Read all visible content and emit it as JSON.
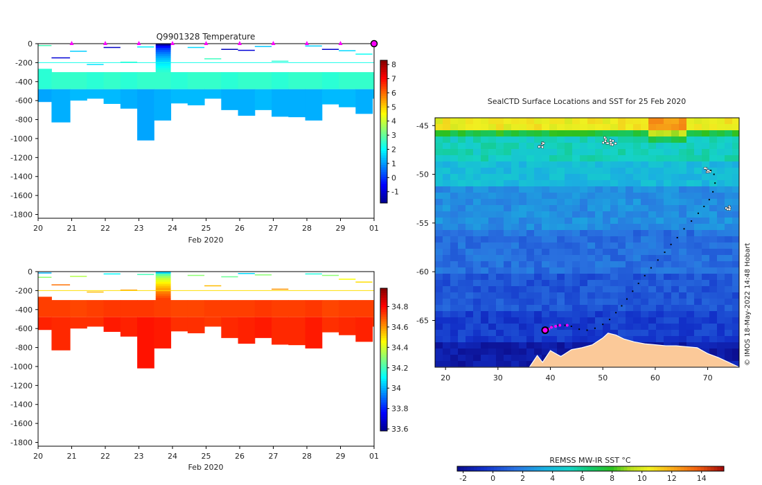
{
  "figure": {
    "credit": "© IMOS 18-May-2022 14:48 Hobart"
  },
  "chart_data": [
    {
      "id": "temperature-section",
      "type": "heatmap",
      "title": "Q9901328  Temperature",
      "xlabel": "Feb 2020",
      "x_ticks": [
        "20",
        "21",
        "22",
        "23",
        "24",
        "25",
        "26",
        "27",
        "28",
        "29",
        "01"
      ],
      "xlim_days": [
        20,
        30
      ],
      "ylim": [
        -1840,
        0
      ],
      "y_ticks": [
        0,
        -200,
        -400,
        -600,
        -800,
        -1000,
        -1200,
        -1400,
        -1600,
        -1800
      ],
      "colorbar": {
        "min": -1.8,
        "max": 8.3,
        "ticks": [
          8,
          7,
          6,
          5,
          4,
          3,
          2,
          1,
          0,
          -1
        ]
      },
      "surface_markers_day": [
        21.0,
        22.0,
        23.0,
        24.0,
        25.0,
        26.0,
        27.0,
        28.0,
        29.0
      ],
      "profiles": [
        {
          "t0": 20.0,
          "t1": 20.4,
          "top": -265,
          "bottom": -615,
          "v_upper": 2.4,
          "v_lower": 1.1
        },
        {
          "t0": 20.4,
          "t1": 20.95,
          "top": -300,
          "bottom": -830,
          "v_upper": 2.5,
          "v_lower": 1.2
        },
        {
          "t0": 20.95,
          "t1": 21.45,
          "top": -300,
          "bottom": -600,
          "v_upper": 2.5,
          "v_lower": 1.3
        },
        {
          "t0": 21.45,
          "t1": 21.95,
          "top": -300,
          "bottom": -580,
          "v_upper": 2.4,
          "v_lower": 1.3
        },
        {
          "t0": 21.95,
          "t1": 22.45,
          "top": -300,
          "bottom": -635,
          "v_upper": 2.5,
          "v_lower": 1.3
        },
        {
          "t0": 22.45,
          "t1": 22.95,
          "top": -300,
          "bottom": -685,
          "v_upper": 2.4,
          "v_lower": 1.2
        },
        {
          "t0": 22.95,
          "t1": 23.45,
          "top": -300,
          "bottom": -1020,
          "v_upper": 2.5,
          "v_lower": 1.1
        },
        {
          "t0": 23.45,
          "t1": 23.95,
          "top": -300,
          "bottom": -810,
          "v_upper": 2.5,
          "v_lower": 1.2
        },
        {
          "t0": 23.95,
          "t1": 24.45,
          "top": -300,
          "bottom": -630,
          "v_upper": 2.4,
          "v_lower": 1.3
        },
        {
          "t0": 24.45,
          "t1": 24.95,
          "top": -300,
          "bottom": -650,
          "v_upper": 2.5,
          "v_lower": 1.3
        },
        {
          "t0": 24.95,
          "t1": 25.45,
          "top": -300,
          "bottom": -580,
          "v_upper": 2.5,
          "v_lower": 1.3
        },
        {
          "t0": 25.45,
          "t1": 25.95,
          "top": -300,
          "bottom": -700,
          "v_upper": 2.4,
          "v_lower": 1.2
        },
        {
          "t0": 25.95,
          "t1": 26.45,
          "top": -300,
          "bottom": -760,
          "v_upper": 2.5,
          "v_lower": 1.2
        },
        {
          "t0": 26.45,
          "t1": 26.95,
          "top": -300,
          "bottom": -700,
          "v_upper": 2.5,
          "v_lower": 1.3
        },
        {
          "t0": 26.95,
          "t1": 27.45,
          "top": -300,
          "bottom": -770,
          "v_upper": 2.4,
          "v_lower": 1.2
        },
        {
          "t0": 27.45,
          "t1": 27.95,
          "top": -300,
          "bottom": -775,
          "v_upper": 2.5,
          "v_lower": 1.2
        },
        {
          "t0": 27.95,
          "t1": 28.45,
          "top": -300,
          "bottom": -810,
          "v_upper": 2.5,
          "v_lower": 1.2
        },
        {
          "t0": 28.45,
          "t1": 28.95,
          "top": -300,
          "bottom": -640,
          "v_upper": 2.4,
          "v_lower": 1.3
        },
        {
          "t0": 28.95,
          "t1": 29.45,
          "top": -300,
          "bottom": -670,
          "v_upper": 2.5,
          "v_lower": 1.3
        },
        {
          "t0": 29.45,
          "t1": 29.95,
          "top": -300,
          "bottom": -740,
          "v_upper": 2.5,
          "v_lower": 1.2
        },
        {
          "t0": 29.95,
          "t1": 30.0,
          "top": -300,
          "bottom": -580,
          "v_upper": 2.5,
          "v_lower": 1.3
        }
      ],
      "surface_dive": {
        "t0": 23.5,
        "t1": 23.95,
        "top": 0,
        "bottom": -300,
        "v_top": -1.6,
        "v_bottom": 2.4
      },
      "shallow_segments": [
        {
          "t0": 20.0,
          "t1": 20.4,
          "depth": -20,
          "v": 2.7
        },
        {
          "t0": 20.4,
          "t1": 20.95,
          "depth": -150,
          "v": -1.0
        },
        {
          "t0": 20.95,
          "t1": 21.45,
          "depth": -80,
          "v": 1.5
        },
        {
          "t0": 21.45,
          "t1": 21.95,
          "depth": -220,
          "v": 1.7
        },
        {
          "t0": 21.95,
          "t1": 22.45,
          "depth": -40,
          "v": -1.2
        },
        {
          "t0": 22.45,
          "t1": 22.95,
          "depth": -195,
          "v": 2.5
        },
        {
          "t0": 22.95,
          "t1": 23.45,
          "depth": -35,
          "v": 1.8
        },
        {
          "t0": 24.45,
          "t1": 24.95,
          "depth": -40,
          "v": 1.6
        },
        {
          "t0": 24.95,
          "t1": 25.45,
          "depth": -160,
          "v": 2.6
        },
        {
          "t0": 25.45,
          "t1": 25.95,
          "depth": -60,
          "v": -1.3
        },
        {
          "t0": 25.95,
          "t1": 26.45,
          "depth": -70,
          "v": -1.0
        },
        {
          "t0": 26.45,
          "t1": 26.95,
          "depth": -30,
          "v": 1.4
        },
        {
          "t0": 26.95,
          "t1": 27.45,
          "depth": -185,
          "v": 2.4
        },
        {
          "t0": 27.95,
          "t1": 28.45,
          "depth": -25,
          "v": 1.5
        },
        {
          "t0": 28.45,
          "t1": 28.95,
          "depth": -60,
          "v": -1.1
        },
        {
          "t0": 28.95,
          "t1": 29.45,
          "depth": -75,
          "v": 1.6
        },
        {
          "t0": 29.45,
          "t1": 29.95,
          "depth": -110,
          "v": 2.1
        }
      ],
      "reference_line": {
        "t0": 20.0,
        "t1": 30.0,
        "depth": -200,
        "v": 2.2
      }
    },
    {
      "id": "salinity-section",
      "type": "heatmap",
      "title": "",
      "xlabel": "Feb 2020",
      "x_ticks": [
        "20",
        "21",
        "22",
        "23",
        "24",
        "25",
        "26",
        "27",
        "28",
        "29",
        "01"
      ],
      "xlim_days": [
        20,
        30
      ],
      "ylim": [
        -1840,
        0
      ],
      "y_ticks": [
        0,
        -200,
        -400,
        -600,
        -800,
        -1000,
        -1200,
        -1400,
        -1600,
        -1800
      ],
      "colorbar": {
        "min": 33.58,
        "max": 34.98,
        "ticks": [
          34.8,
          34.6,
          34.4,
          34.2,
          34,
          33.8,
          33.6
        ]
      },
      "profiles": [
        {
          "t0": 20.0,
          "t1": 20.4,
          "top": -265,
          "bottom": -615,
          "v_upper": 34.72,
          "v_lower": 34.76
        },
        {
          "t0": 20.4,
          "t1": 20.95,
          "top": -300,
          "bottom": -830,
          "v_upper": 34.72,
          "v_lower": 34.75
        },
        {
          "t0": 20.95,
          "t1": 21.45,
          "top": -300,
          "bottom": -600,
          "v_upper": 34.71,
          "v_lower": 34.74
        },
        {
          "t0": 21.45,
          "t1": 21.95,
          "top": -300,
          "bottom": -580,
          "v_upper": 34.72,
          "v_lower": 34.74
        },
        {
          "t0": 21.95,
          "t1": 22.45,
          "top": -300,
          "bottom": -635,
          "v_upper": 34.73,
          "v_lower": 34.77
        },
        {
          "t0": 22.45,
          "t1": 22.95,
          "top": -300,
          "bottom": -685,
          "v_upper": 34.73,
          "v_lower": 34.76
        },
        {
          "t0": 22.95,
          "t1": 23.45,
          "top": -300,
          "bottom": -1020,
          "v_upper": 34.73,
          "v_lower": 34.78
        },
        {
          "t0": 23.45,
          "t1": 23.95,
          "top": -300,
          "bottom": -810,
          "v_upper": 34.72,
          "v_lower": 34.77
        },
        {
          "t0": 23.95,
          "t1": 24.45,
          "top": -300,
          "bottom": -630,
          "v_upper": 34.71,
          "v_lower": 34.74
        },
        {
          "t0": 24.45,
          "t1": 24.95,
          "top": -300,
          "bottom": -650,
          "v_upper": 34.71,
          "v_lower": 34.74
        },
        {
          "t0": 24.95,
          "t1": 25.45,
          "top": -300,
          "bottom": -580,
          "v_upper": 34.72,
          "v_lower": 34.73
        },
        {
          "t0": 25.45,
          "t1": 25.95,
          "top": -300,
          "bottom": -700,
          "v_upper": 34.72,
          "v_lower": 34.75
        },
        {
          "t0": 25.95,
          "t1": 26.45,
          "top": -300,
          "bottom": -760,
          "v_upper": 34.72,
          "v_lower": 34.76
        },
        {
          "t0": 26.45,
          "t1": 26.95,
          "top": -300,
          "bottom": -700,
          "v_upper": 34.73,
          "v_lower": 34.77
        },
        {
          "t0": 26.95,
          "t1": 27.45,
          "top": -300,
          "bottom": -770,
          "v_upper": 34.72,
          "v_lower": 34.75
        },
        {
          "t0": 27.45,
          "t1": 27.95,
          "top": -300,
          "bottom": -775,
          "v_upper": 34.72,
          "v_lower": 34.75
        },
        {
          "t0": 27.95,
          "t1": 28.45,
          "top": -300,
          "bottom": -810,
          "v_upper": 34.73,
          "v_lower": 34.77
        },
        {
          "t0": 28.45,
          "t1": 28.95,
          "top": -300,
          "bottom": -640,
          "v_upper": 34.71,
          "v_lower": 34.74
        },
        {
          "t0": 28.95,
          "t1": 29.45,
          "top": -300,
          "bottom": -670,
          "v_upper": 34.72,
          "v_lower": 34.75
        },
        {
          "t0": 29.45,
          "t1": 29.95,
          "top": -300,
          "bottom": -740,
          "v_upper": 34.72,
          "v_lower": 34.76
        },
        {
          "t0": 29.95,
          "t1": 30.0,
          "top": -300,
          "bottom": -580,
          "v_upper": 34.71,
          "v_lower": 34.73
        }
      ],
      "surface_dive": {
        "t0": 23.5,
        "t1": 23.95,
        "top": 0,
        "bottom": -300,
        "v_top": 34.05,
        "v_bottom": 34.72
      },
      "shallow_segments": [
        {
          "t0": 20.0,
          "t1": 20.4,
          "depth": -15,
          "v": 34.0
        },
        {
          "t0": 20.0,
          "t1": 20.4,
          "depth": -60,
          "v": 34.3
        },
        {
          "t0": 20.4,
          "t1": 20.95,
          "depth": -140,
          "v": 34.65
        },
        {
          "t0": 20.95,
          "t1": 21.45,
          "depth": -50,
          "v": 34.35
        },
        {
          "t0": 21.45,
          "t1": 21.95,
          "depth": -215,
          "v": 34.55
        },
        {
          "t0": 21.95,
          "t1": 22.45,
          "depth": -25,
          "v": 34.1
        },
        {
          "t0": 22.45,
          "t1": 22.95,
          "depth": -195,
          "v": 34.6
        },
        {
          "t0": 22.95,
          "t1": 23.45,
          "depth": -30,
          "v": 34.2
        },
        {
          "t0": 24.45,
          "t1": 24.95,
          "depth": -40,
          "v": 34.3
        },
        {
          "t0": 24.95,
          "t1": 25.45,
          "depth": -150,
          "v": 34.55
        },
        {
          "t0": 25.45,
          "t1": 25.95,
          "depth": -55,
          "v": 34.25
        },
        {
          "t0": 25.95,
          "t1": 26.45,
          "depth": -20,
          "v": 34.05
        },
        {
          "t0": 26.45,
          "t1": 26.95,
          "depth": -35,
          "v": 34.3
        },
        {
          "t0": 26.95,
          "t1": 27.45,
          "depth": -185,
          "v": 34.6
        },
        {
          "t0": 27.95,
          "t1": 28.45,
          "depth": -25,
          "v": 34.15
        },
        {
          "t0": 28.45,
          "t1": 28.95,
          "depth": -40,
          "v": 34.3
        },
        {
          "t0": 28.95,
          "t1": 29.45,
          "depth": -80,
          "v": 34.45
        },
        {
          "t0": 29.45,
          "t1": 29.95,
          "depth": -110,
          "v": 34.5
        }
      ],
      "reference_line": {
        "t0": 20.0,
        "t1": 30.0,
        "depth": -200,
        "v": 34.5
      }
    },
    {
      "id": "sst-map",
      "type": "heatmap",
      "title": "SealCTD Surface Locations and SST for 25 Feb 2020",
      "xlim": [
        18,
        76
      ],
      "ylim": [
        -69.8,
        -44.2
      ],
      "x_ticks": [
        20,
        30,
        40,
        50,
        60,
        70
      ],
      "y_ticks": [
        -45,
        -50,
        -55,
        -60,
        -65
      ],
      "colorbar_label": "REMSS MW-IR SST °C",
      "colorbar": {
        "min": -2.4,
        "max": 15.5,
        "ticks": [
          -2,
          0,
          2,
          4,
          6,
          8,
          10,
          12,
          14
        ]
      },
      "sst_zones": [
        {
          "lat_top": -44.2,
          "lat_bottom": -45.2,
          "sst": 10.5
        },
        {
          "lat_top": -45.2,
          "lat_bottom": -46.4,
          "sst": 7.5
        },
        {
          "lat_top": -46.4,
          "lat_bottom": -48.5,
          "sst": 5.2
        },
        {
          "lat_top": -48.5,
          "lat_bottom": -51.5,
          "sst": 4.0
        },
        {
          "lat_top": -51.5,
          "lat_bottom": -55.5,
          "sst": 2.4
        },
        {
          "lat_top": -55.5,
          "lat_bottom": -60.0,
          "sst": 1.4
        },
        {
          "lat_top": -60.0,
          "lat_bottom": -64.0,
          "sst": 0.6
        },
        {
          "lat_top": -64.0,
          "lat_bottom": -67.0,
          "sst": -0.2
        },
        {
          "lat_top": -67.0,
          "lat_bottom": -69.8,
          "sst": -1.6
        }
      ],
      "land_outline": [
        [
          18,
          -69.8
        ],
        [
          36,
          -69.8
        ],
        [
          37.5,
          -68.6
        ],
        [
          38.5,
          -69.3
        ],
        [
          40,
          -68.1
        ],
        [
          42,
          -68.7
        ],
        [
          44,
          -68.0
        ],
        [
          46,
          -67.8
        ],
        [
          48,
          -67.5
        ],
        [
          50,
          -66.8
        ],
        [
          51,
          -66.3
        ],
        [
          52.5,
          -66.5
        ],
        [
          54,
          -66.9
        ],
        [
          56,
          -67.2
        ],
        [
          58,
          -67.4
        ],
        [
          60,
          -67.5
        ],
        [
          62,
          -67.6
        ],
        [
          64,
          -67.6
        ],
        [
          66,
          -67.7
        ],
        [
          68,
          -67.8
        ],
        [
          70,
          -68.4
        ],
        [
          72,
          -68.8
        ],
        [
          74,
          -69.3
        ],
        [
          76,
          -69.8
        ]
      ],
      "track": [
        [
          70.6,
          -49.6
        ],
        [
          71.2,
          -50.0
        ],
        [
          71.4,
          -50.9
        ],
        [
          71.0,
          -51.8
        ],
        [
          70.3,
          -52.6
        ],
        [
          69.3,
          -53.3
        ],
        [
          68.2,
          -54.0
        ],
        [
          66.9,
          -54.8
        ],
        [
          65.5,
          -55.6
        ],
        [
          64.2,
          -56.5
        ],
        [
          63.0,
          -57.2
        ],
        [
          61.8,
          -58.0
        ],
        [
          60.5,
          -58.8
        ],
        [
          59.2,
          -59.6
        ],
        [
          58.0,
          -60.4
        ],
        [
          56.8,
          -61.2
        ],
        [
          55.7,
          -62.0
        ],
        [
          54.6,
          -62.8
        ],
        [
          53.6,
          -63.5
        ],
        [
          52.5,
          -64.2
        ],
        [
          51.3,
          -64.9
        ],
        [
          50.0,
          -65.4
        ],
        [
          48.5,
          -65.8
        ],
        [
          47.0,
          -66.0
        ],
        [
          45.5,
          -65.9
        ],
        [
          44.0,
          -65.6
        ],
        [
          42.8,
          -65.5
        ],
        [
          41.5,
          -65.5
        ],
        [
          40.3,
          -65.6
        ],
        [
          39.6,
          -65.8
        ]
      ],
      "recent_points": [
        [
          43.2,
          -65.5
        ],
        [
          41.8,
          -65.5
        ],
        [
          41.0,
          -65.6
        ],
        [
          40.2,
          -65.7
        ],
        [
          39.7,
          -65.9
        ]
      ],
      "current_position": [
        39.0,
        -66.0
      ],
      "white_clusters": [
        [
          69.7,
          -49.4
        ],
        [
          38.1,
          -46.9
        ],
        [
          50.3,
          -46.4
        ],
        [
          51.8,
          -46.6
        ],
        [
          73.5,
          -53.2
        ]
      ]
    }
  ]
}
